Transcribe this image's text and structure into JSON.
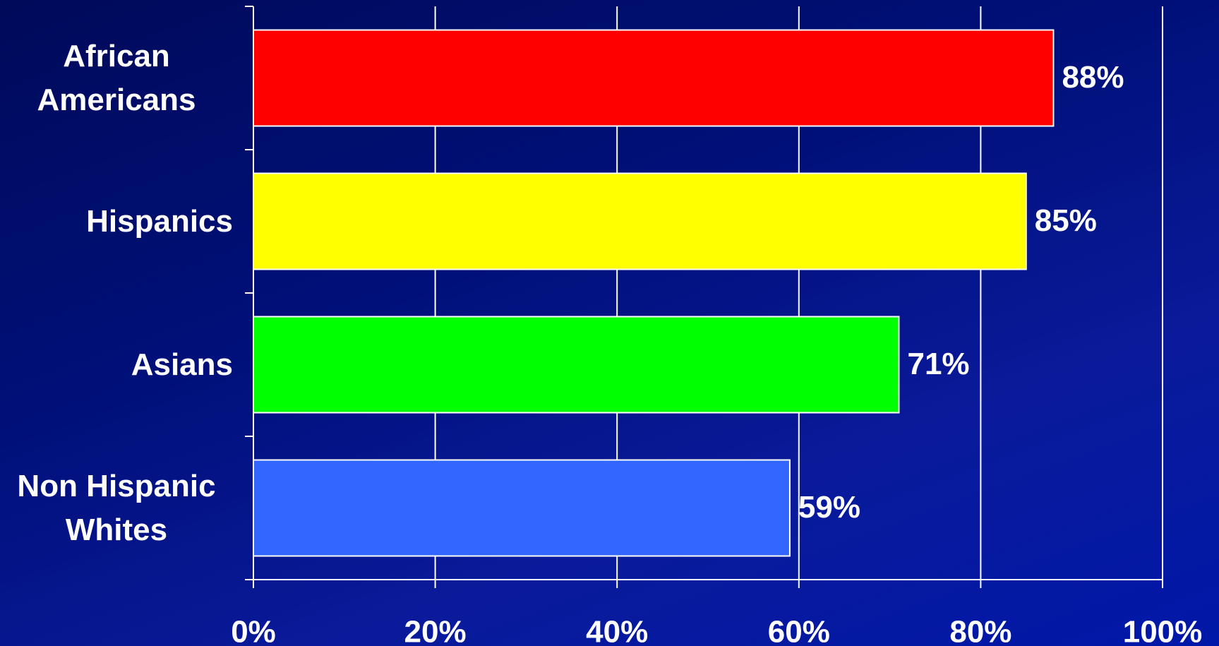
{
  "chart_data": {
    "type": "hbar",
    "categories": [
      "African Americans",
      "Hispanics",
      "Asians",
      "Non Hispanic Whites"
    ],
    "values": [
      88,
      85,
      71,
      59
    ],
    "value_labels": [
      "88%",
      "85%",
      "71%",
      "59%"
    ],
    "colors": [
      "#ff0000",
      "#ffff00",
      "#00ff00",
      "#3366ff"
    ],
    "xlim": [
      0,
      100
    ],
    "xticks": [
      {
        "value": 0,
        "label": "0%"
      },
      {
        "value": 20,
        "label": "20%"
      },
      {
        "value": 40,
        "label": "40%"
      },
      {
        "value": 60,
        "label": "60%"
      },
      {
        "value": 80,
        "label": "80%"
      },
      {
        "value": 100,
        "label": "100%"
      }
    ],
    "grid": true
  }
}
